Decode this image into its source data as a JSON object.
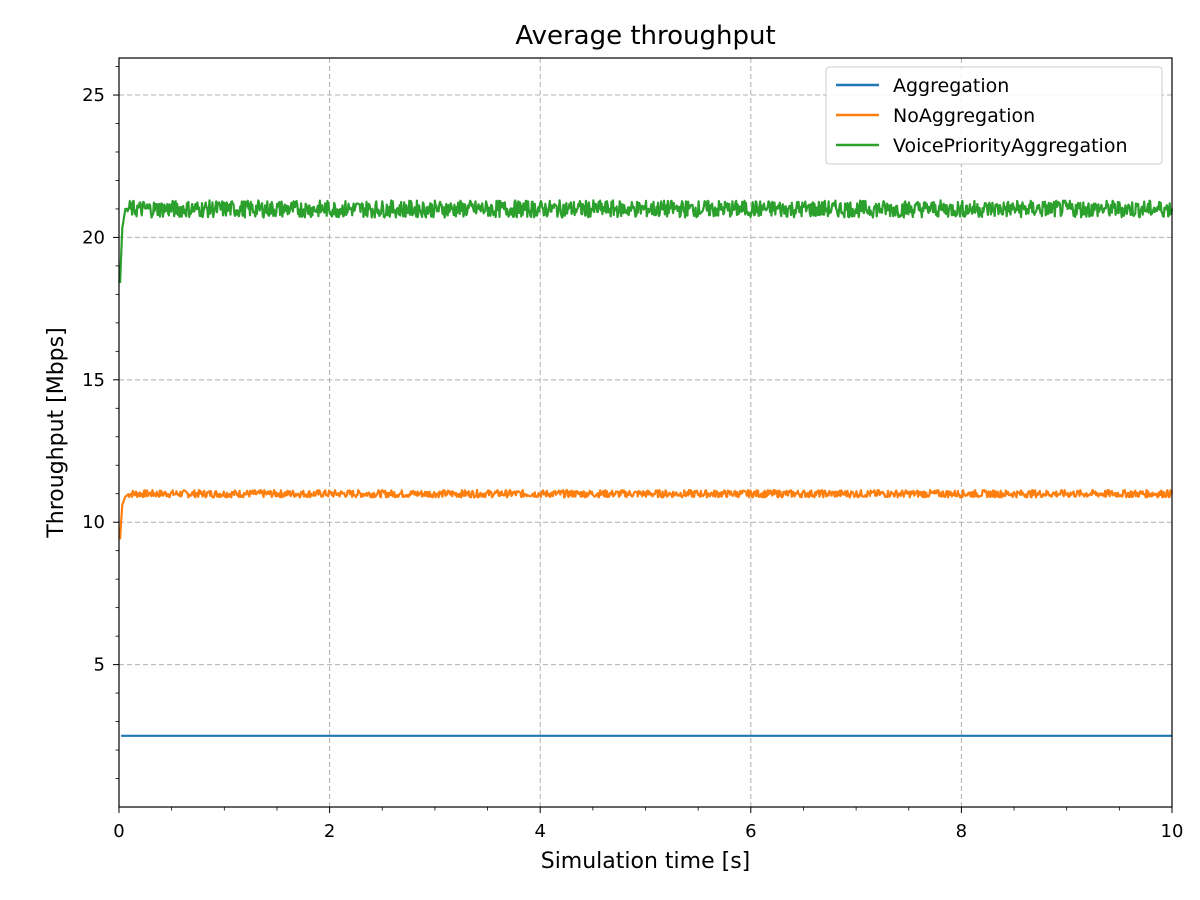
{
  "chart_data": {
    "type": "line",
    "title": "Average throughput",
    "xlabel": "Simulation time [s]",
    "ylabel": "Throughput [Mbps]",
    "xlim": [
      0,
      10
    ],
    "ylim": [
      0,
      26.3
    ],
    "xticks": [
      0,
      2,
      4,
      6,
      8,
      10
    ],
    "xtick_labels": [
      "0",
      "2",
      "4",
      "6",
      "8",
      "10"
    ],
    "yticks": [
      5,
      10,
      15,
      20,
      25
    ],
    "ytick_labels": [
      "5",
      "10",
      "15",
      "20",
      "25"
    ],
    "grid": true,
    "legend_position": "top-right",
    "series": [
      {
        "name": "Aggregation",
        "color": "#1f77b4",
        "x": [
          0.02,
          10
        ],
        "y": [
          2.5,
          2.5
        ]
      },
      {
        "name": "NoAggregation",
        "color": "#ff7f0e",
        "x": [
          0.01,
          0.03,
          0.06,
          0.1,
          1,
          2,
          3,
          4,
          5,
          6,
          7,
          8,
          9,
          10
        ],
        "y": [
          9.4,
          10.6,
          10.9,
          11.0,
          11.0,
          11.0,
          11.0,
          11.0,
          11.0,
          11.0,
          11.0,
          11.0,
          11.0,
          11.0
        ]
      },
      {
        "name": "VoicePriorityAggregation",
        "color": "#2ca02c",
        "x": [
          0.01,
          0.03,
          0.06,
          0.1,
          1,
          2,
          3,
          4,
          5,
          6,
          7,
          8,
          9,
          10
        ],
        "y": [
          18.4,
          20.3,
          21.0,
          21.0,
          21.0,
          21.0,
          21.0,
          21.0,
          21.0,
          21.0,
          21.0,
          21.0,
          21.0,
          21.0
        ]
      }
    ]
  }
}
